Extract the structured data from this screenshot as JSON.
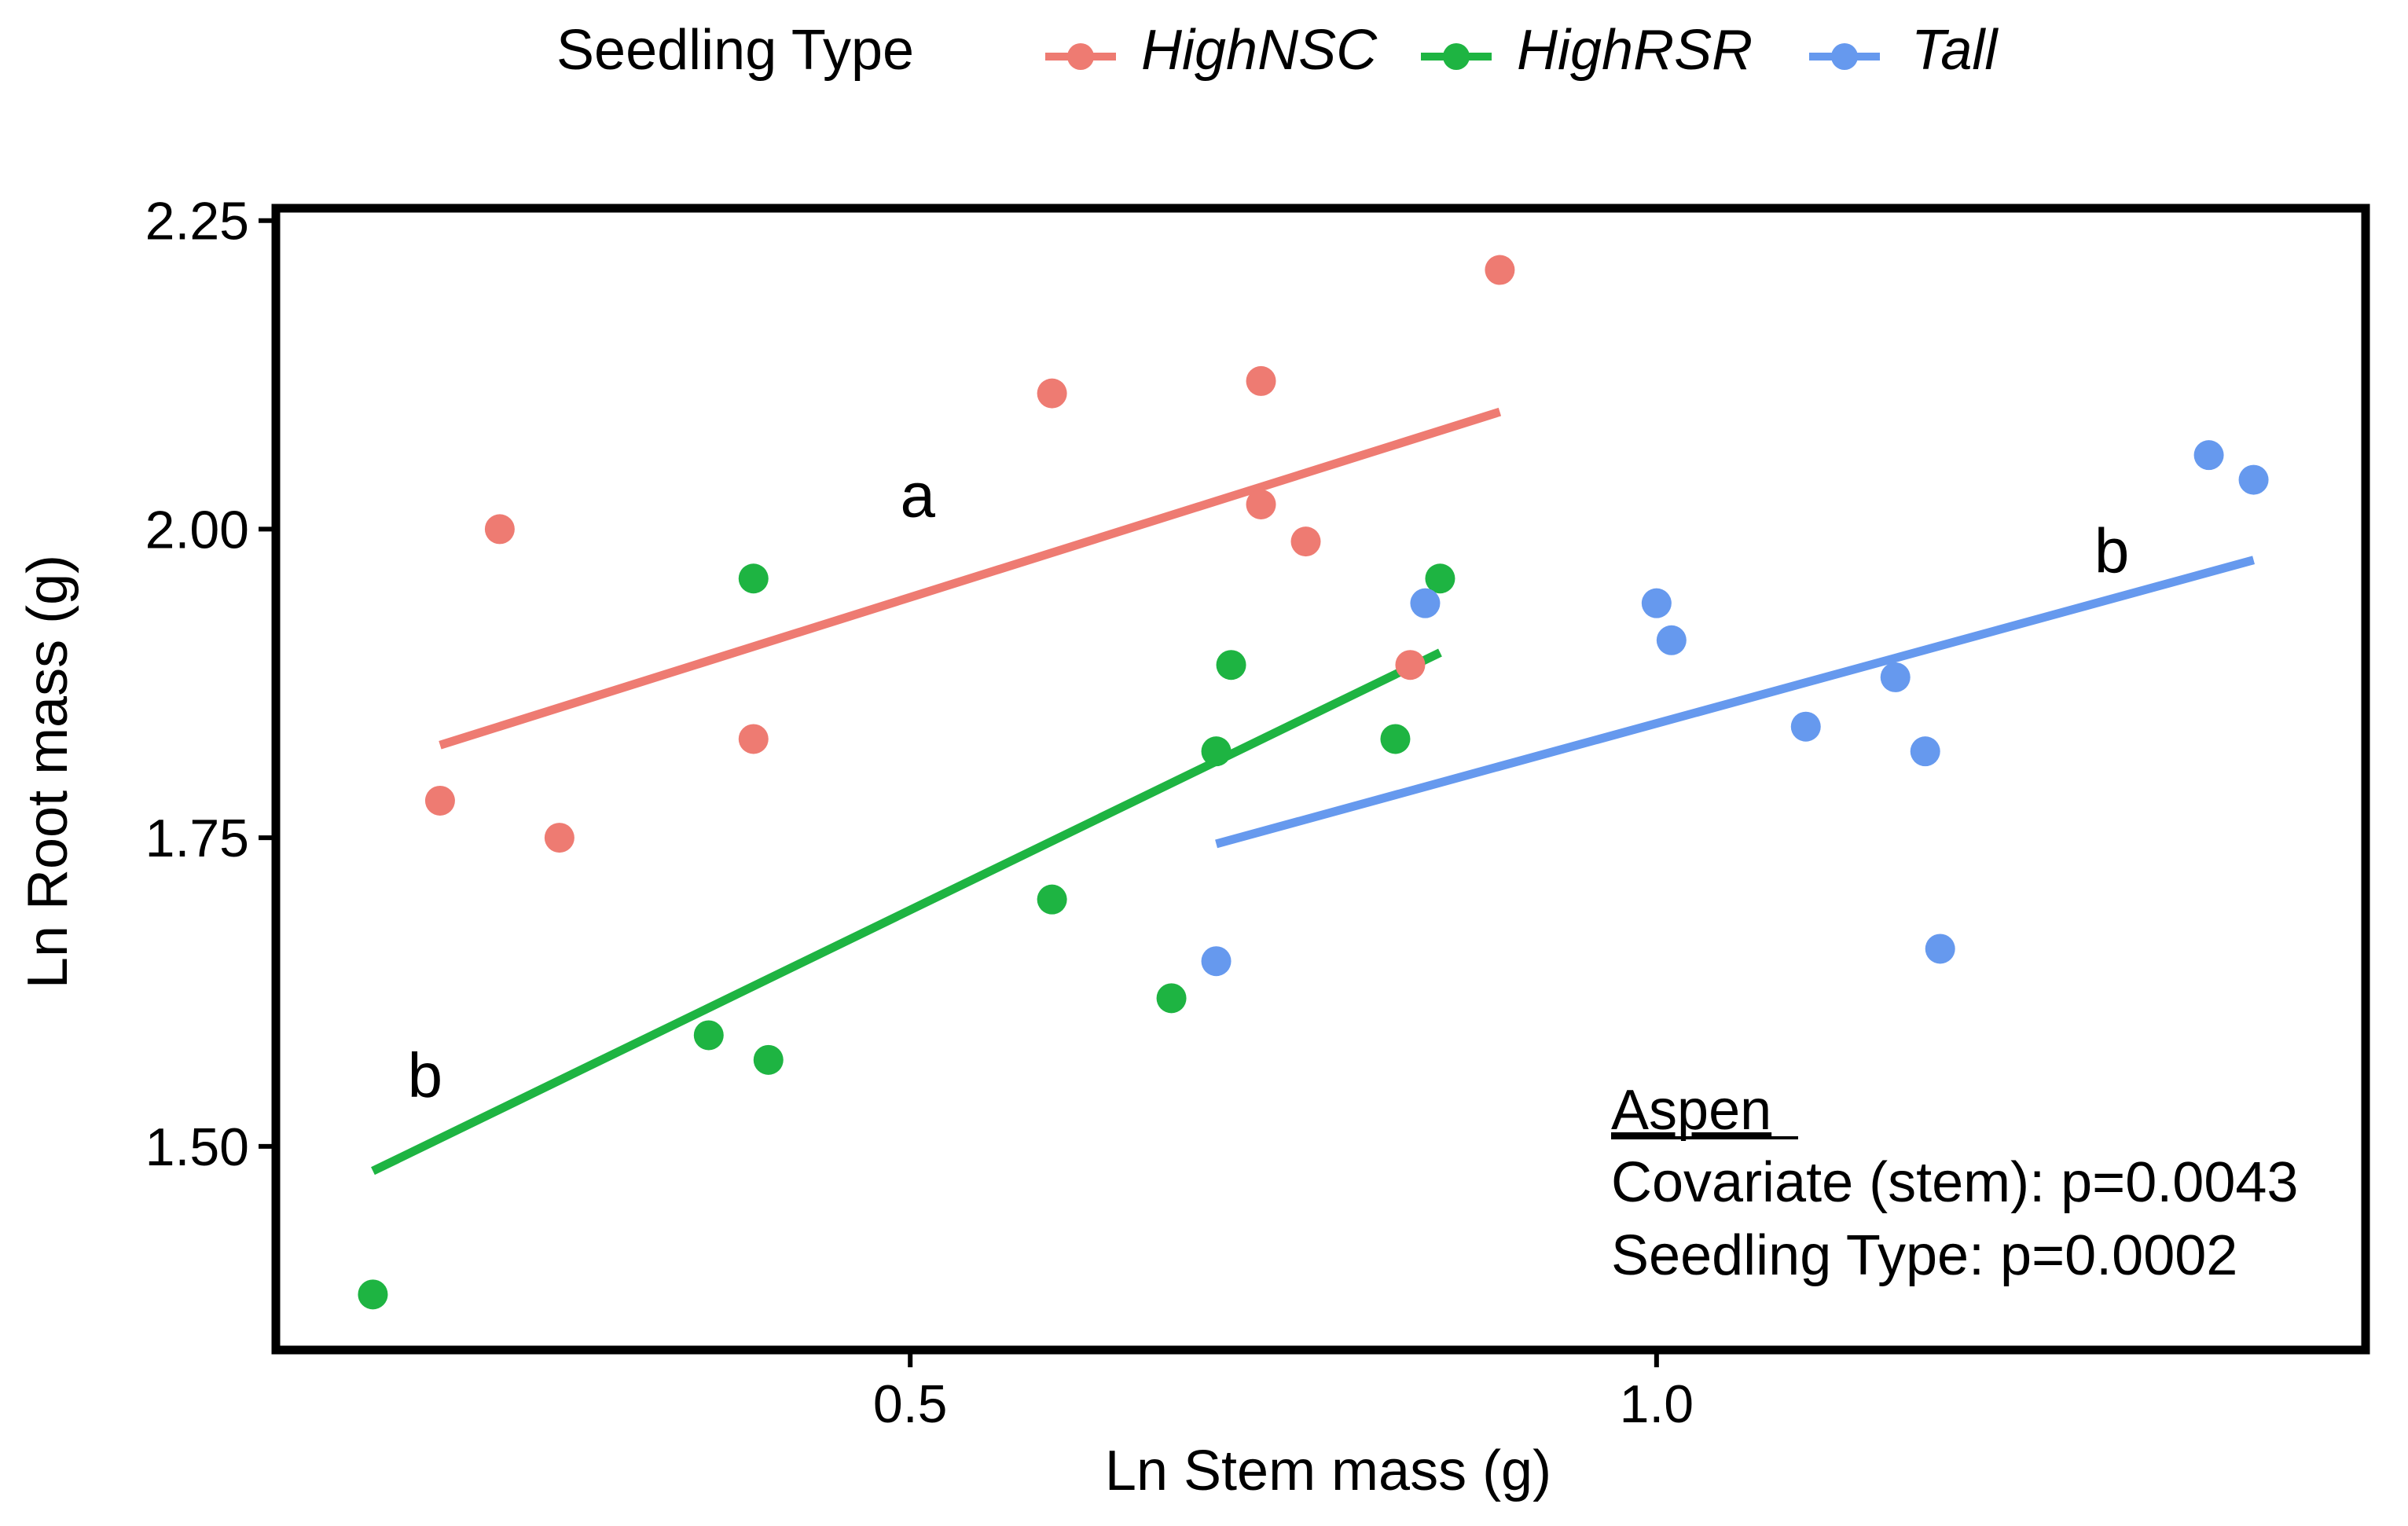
{
  "chart_data": {
    "type": "scatter",
    "title": "",
    "xlabel": "Ln Stem mass (g)",
    "ylabel": "Ln Root mass (g)",
    "xlim": [
      0.075,
      1.475
    ],
    "ylim": [
      1.335,
      2.26
    ],
    "x_ticks": [
      {
        "value": 0.5,
        "label": "0.5"
      },
      {
        "value": 1.0,
        "label": "1.0"
      }
    ],
    "y_ticks": [
      {
        "value": 1.5,
        "label": "1.50"
      },
      {
        "value": 1.75,
        "label": "1.75"
      },
      {
        "value": 2.0,
        "label": "2.00"
      },
      {
        "value": 2.25,
        "label": "2.25"
      }
    ],
    "grid": false,
    "legend": {
      "title": "Seedling Type",
      "position": "top",
      "entries": [
        "HighNSC",
        "HighRSR",
        "Tall"
      ]
    },
    "series": [
      {
        "name": "HighNSC",
        "key": "highnsc",
        "color": "#ee7b72",
        "points": [
          {
            "x": 0.185,
            "y": 1.78
          },
          {
            "x": 0.225,
            "y": 2.0
          },
          {
            "x": 0.265,
            "y": 1.75
          },
          {
            "x": 0.395,
            "y": 1.83
          },
          {
            "x": 0.595,
            "y": 2.11
          },
          {
            "x": 0.735,
            "y": 2.12
          },
          {
            "x": 0.735,
            "y": 2.02
          },
          {
            "x": 0.765,
            "y": 1.99
          },
          {
            "x": 0.835,
            "y": 1.89
          },
          {
            "x": 0.895,
            "y": 2.21
          }
        ],
        "fit": [
          {
            "x": 0.185,
            "y": 1.825
          },
          {
            "x": 0.895,
            "y": 2.095
          }
        ],
        "group_letter": "a",
        "group_letter_at": {
          "x": 0.505,
          "y": 2.01
        }
      },
      {
        "name": "HighRSR",
        "key": "highrsr",
        "color": "#1eb442",
        "points": [
          {
            "x": 0.14,
            "y": 1.38
          },
          {
            "x": 0.365,
            "y": 1.59
          },
          {
            "x": 0.395,
            "y": 1.96
          },
          {
            "x": 0.405,
            "y": 1.57
          },
          {
            "x": 0.595,
            "y": 1.7
          },
          {
            "x": 0.675,
            "y": 1.62
          },
          {
            "x": 0.705,
            "y": 1.82
          },
          {
            "x": 0.715,
            "y": 1.89
          },
          {
            "x": 0.825,
            "y": 1.83
          },
          {
            "x": 0.855,
            "y": 1.96
          }
        ],
        "fit": [
          {
            "x": 0.14,
            "y": 1.48
          },
          {
            "x": 0.855,
            "y": 1.9
          }
        ],
        "group_letter": "b",
        "group_letter_at": {
          "x": 0.175,
          "y": 1.54
        }
      },
      {
        "name": "Tall",
        "key": "tall",
        "color": "#6699ee",
        "points": [
          {
            "x": 0.705,
            "y": 1.65
          },
          {
            "x": 0.845,
            "y": 1.94
          },
          {
            "x": 1.0,
            "y": 1.94
          },
          {
            "x": 1.01,
            "y": 1.91
          },
          {
            "x": 1.1,
            "y": 1.84
          },
          {
            "x": 1.16,
            "y": 1.88
          },
          {
            "x": 1.18,
            "y": 1.82
          },
          {
            "x": 1.19,
            "y": 1.66
          },
          {
            "x": 1.37,
            "y": 2.06
          },
          {
            "x": 1.4,
            "y": 2.04
          }
        ],
        "fit": [
          {
            "x": 0.705,
            "y": 1.745
          },
          {
            "x": 1.4,
            "y": 1.975
          }
        ],
        "group_letter": "b",
        "group_letter_at": {
          "x": 1.305,
          "y": 1.965
        }
      }
    ],
    "annotation": {
      "title": "Aspen",
      "lines": [
        "Covariate (stem): p=0.0043",
        "Seedling Type: p=0.0002"
      ]
    }
  }
}
